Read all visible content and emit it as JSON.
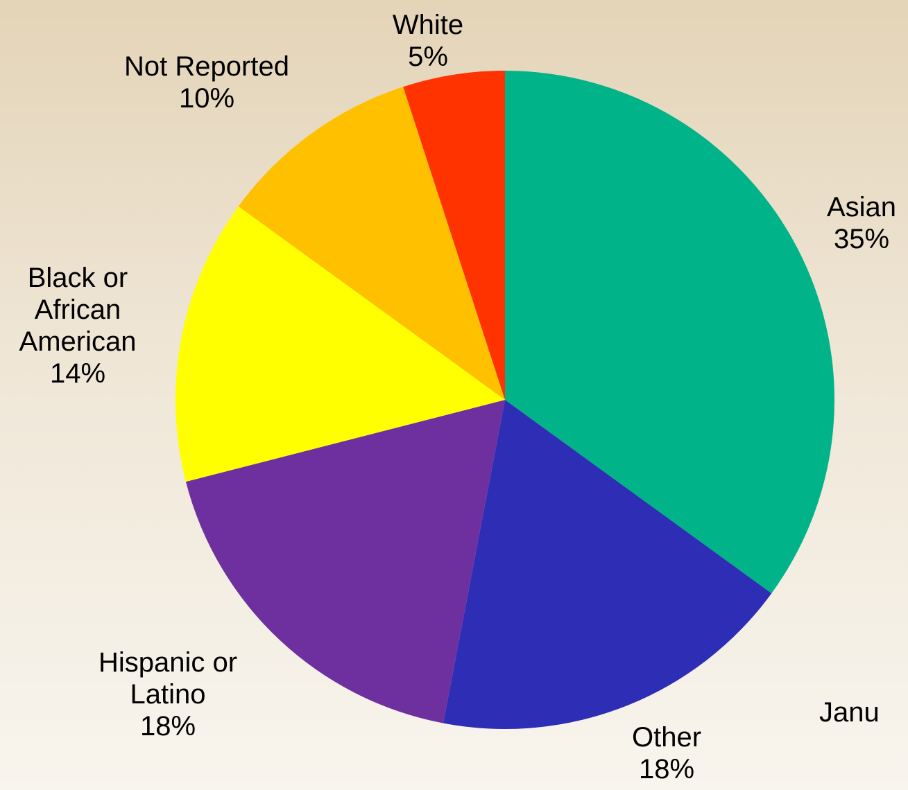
{
  "chart_data": {
    "type": "pie",
    "title": "",
    "slices": [
      {
        "label": "Asian",
        "name_lines": [
          "Asian"
        ],
        "percent_label": "35%",
        "value": 35,
        "color": "#00b388"
      },
      {
        "label": "Other",
        "name_lines": [
          "Other"
        ],
        "percent_label": "18%",
        "value": 18,
        "color": "#2e2db5"
      },
      {
        "label": "Hispanic or Latino",
        "name_lines": [
          "Hispanic or",
          "Latino"
        ],
        "percent_label": "18%",
        "value": 18,
        "color": "#6e2f9f"
      },
      {
        "label": "Black or African American",
        "name_lines": [
          "Black or",
          "African",
          "American"
        ],
        "percent_label": "14%",
        "value": 14,
        "color": "#ffff00"
      },
      {
        "label": "Not Reported",
        "name_lines": [
          "Not Reported"
        ],
        "percent_label": "10%",
        "value": 10,
        "color": "#ffc000"
      },
      {
        "label": "White",
        "name_lines": [
          "White"
        ],
        "percent_label": "5%",
        "value": 5,
        "color": "#ff3300"
      }
    ],
    "start_angle_deg": 0,
    "direction": "clockwise",
    "legend": "none"
  },
  "footer_text": "Janu"
}
